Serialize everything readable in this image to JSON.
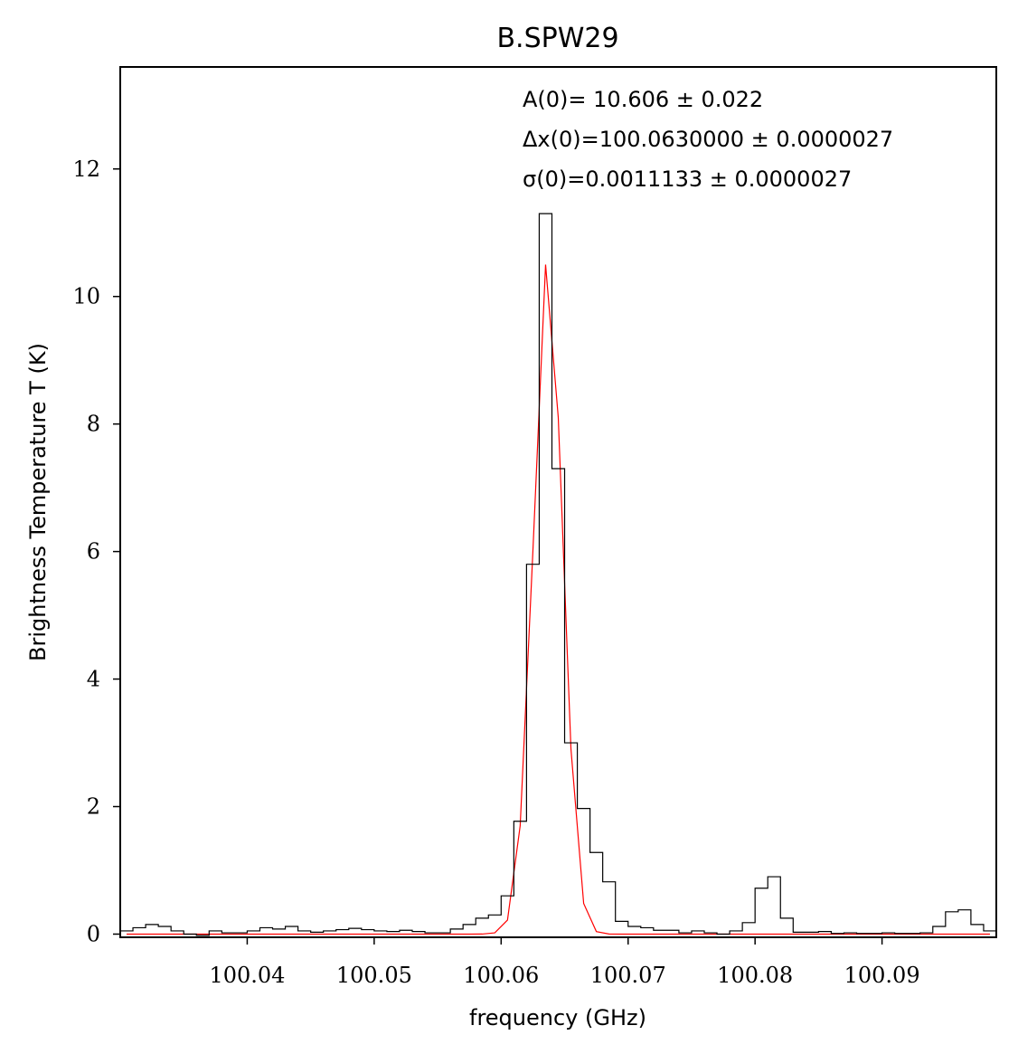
{
  "chart_data": {
    "type": "line",
    "title": "B.SPW29",
    "xlabel": "frequency (GHz)",
    "ylabel": "Brightness Temperature T (K)",
    "xlim": [
      100.03,
      100.099
    ],
    "ylim": [
      -0.05,
      13.6
    ],
    "xticks": [
      {
        "value": 100.04,
        "label": "100.04"
      },
      {
        "value": 100.05,
        "label": "100.05"
      },
      {
        "value": 100.06,
        "label": "100.06"
      },
      {
        "value": 100.07,
        "label": "100.07"
      },
      {
        "value": 100.08,
        "label": "100.08"
      },
      {
        "value": 100.09,
        "label": "100.09"
      }
    ],
    "yticks": [
      {
        "value": 0,
        "label": "0"
      },
      {
        "value": 2,
        "label": "2"
      },
      {
        "value": 4,
        "label": "4"
      },
      {
        "value": 6,
        "label": "6"
      },
      {
        "value": 8,
        "label": "8"
      },
      {
        "value": 10,
        "label": "10"
      },
      {
        "value": 12,
        "label": "12"
      }
    ],
    "grid": false,
    "annotations": [
      {
        "id": "amp",
        "text": "A(0)= 10.606 ± 0.022"
      },
      {
        "id": "center",
        "text": "Δx(0)=100.0630000 ± 0.0000027"
      },
      {
        "id": "sigma",
        "text": "σ(0)=0.0011133 ± 0.0000027"
      }
    ],
    "series": [
      {
        "style": "steps",
        "color": "#000000",
        "x": [
          100.0305,
          100.0315,
          100.0325,
          100.0335,
          100.0345,
          100.0355,
          100.0365,
          100.0375,
          100.0385,
          100.0395,
          100.0405,
          100.0415,
          100.0425,
          100.0435,
          100.0445,
          100.0455,
          100.0465,
          100.0475,
          100.0485,
          100.0495,
          100.0505,
          100.0515,
          100.0525,
          100.0535,
          100.0545,
          100.0555,
          100.0565,
          100.0575,
          100.0585,
          100.0595,
          100.0605,
          100.0615,
          100.0625,
          100.0635,
          100.0645,
          100.0655,
          100.0665,
          100.0675,
          100.0685,
          100.0695,
          100.0705,
          100.0715,
          100.0725,
          100.0735,
          100.0745,
          100.0755,
          100.0765,
          100.0775,
          100.0785,
          100.0795,
          100.0805,
          100.0815,
          100.0825,
          100.0835,
          100.0845,
          100.0855,
          100.0865,
          100.0875,
          100.0885,
          100.0895,
          100.0905,
          100.0915,
          100.0925,
          100.0935,
          100.0945,
          100.0955,
          100.0965,
          100.0975,
          100.0985
        ],
        "values": [
          0.05,
          0.1,
          0.15,
          0.12,
          0.05,
          0.0,
          -0.02,
          0.05,
          0.02,
          0.02,
          0.05,
          0.1,
          0.08,
          0.12,
          0.05,
          0.03,
          0.05,
          0.07,
          0.09,
          0.07,
          0.05,
          0.04,
          0.06,
          0.04,
          0.02,
          0.02,
          0.08,
          0.15,
          0.25,
          0.3,
          0.6,
          1.77,
          5.8,
          11.3,
          7.3,
          3.0,
          1.97,
          1.28,
          0.82,
          0.2,
          0.12,
          0.1,
          0.06,
          0.06,
          0.02,
          0.05,
          0.02,
          0.0,
          0.05,
          0.18,
          0.72,
          0.9,
          0.25,
          0.03,
          0.03,
          0.04,
          0.01,
          0.02,
          0.01,
          0.01,
          0.02,
          0.01,
          0.01,
          0.02,
          0.12,
          0.35,
          0.38,
          0.15,
          0.05
        ]
      },
      {
        "style": "line",
        "color": "#ff0000",
        "x": [
          100.0305,
          100.0315,
          100.0325,
          100.0335,
          100.0345,
          100.0355,
          100.0365,
          100.0375,
          100.0385,
          100.0395,
          100.0405,
          100.0415,
          100.0425,
          100.0435,
          100.0445,
          100.0455,
          100.0465,
          100.0475,
          100.0485,
          100.0495,
          100.0505,
          100.0515,
          100.0525,
          100.0535,
          100.0545,
          100.0555,
          100.0565,
          100.0575,
          100.0585,
          100.0595,
          100.0605,
          100.0615,
          100.0625,
          100.0635,
          100.0645,
          100.0655,
          100.0665,
          100.0675,
          100.0685,
          100.0695,
          100.0705,
          100.0715,
          100.0725,
          100.0735,
          100.0745,
          100.0755,
          100.0765,
          100.0775,
          100.0785,
          100.0795,
          100.0805,
          100.0815,
          100.0825,
          100.0835,
          100.0845,
          100.0855,
          100.0865,
          100.0875,
          100.0885,
          100.0895,
          100.0905,
          100.0915,
          100.0925,
          100.0935,
          100.0945,
          100.0955,
          100.0965,
          100.0975,
          100.0985
        ],
        "values": [
          0,
          0,
          0,
          0,
          0,
          0,
          0,
          0,
          0,
          0,
          0,
          0,
          0,
          0,
          0,
          0,
          0,
          0,
          0,
          0,
          0,
          0,
          0,
          0,
          0,
          0,
          0,
          0,
          0.001,
          0.02,
          0.22,
          1.7,
          6.0,
          10.5,
          8.1,
          2.9,
          0.48,
          0.04,
          0.002,
          0,
          0,
          0,
          0,
          0,
          0,
          0,
          0,
          0,
          0,
          0,
          0,
          0,
          0,
          0,
          0,
          0,
          0,
          0,
          0,
          0,
          0,
          0,
          0,
          0,
          0,
          0,
          0,
          0,
          0
        ]
      }
    ]
  }
}
